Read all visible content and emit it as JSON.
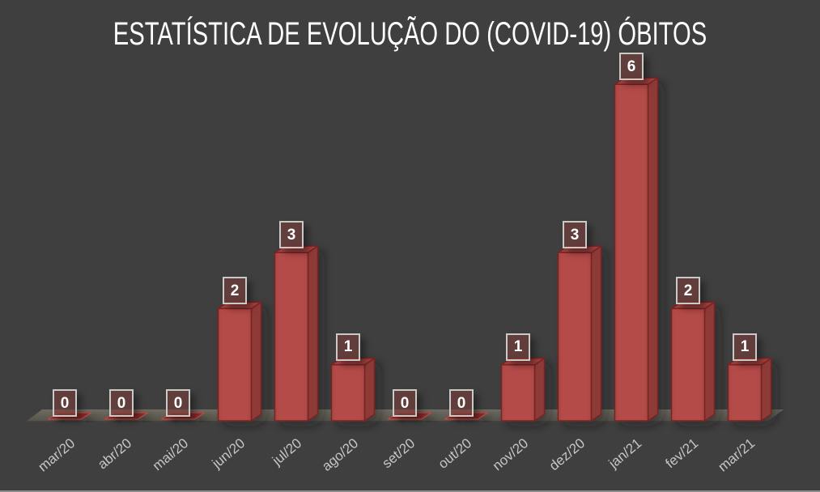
{
  "title": "ESTATÍSTICA DE EVOLUÇÃO DO (COVID-19) ÓBITOS",
  "chart_data": {
    "type": "bar",
    "style": "3d-column",
    "title": "ESTATÍSTICA DE EVOLUÇÃO DO (COVID-19) ÓBITOS",
    "categories": [
      "mar/20",
      "abr/20",
      "mai/20",
      "jun/20",
      "jul/20",
      "ago/20",
      "set/20",
      "out/20",
      "nov/20",
      "dez/20",
      "jan/21",
      "fev/21",
      "mar/21"
    ],
    "values": [
      0,
      0,
      0,
      2,
      3,
      1,
      0,
      0,
      1,
      3,
      6,
      2,
      1
    ],
    "data_labels_shown": true,
    "xlabel": "",
    "ylabel": "",
    "ylim": [
      0,
      6
    ],
    "grid": false,
    "legend": "none",
    "colors": {
      "background": "#3f3f3f",
      "bar_front": "#b54c49",
      "bar_side": "#8e3a38",
      "bar_top": "#a24240",
      "bar_outline": "#7a2422",
      "zero_marker_fill": "#882c2a",
      "zero_marker_outline": "#b04a47",
      "floor_top": "#6f6c62",
      "floor_bottom": "#55534a",
      "floor_edge": "#454440",
      "label_box_border": "#c9c9c6",
      "label_box_fill": "rgba(118,62,56,0.62)",
      "label_text": "#ffffff",
      "axis_label": "#c6c6c6",
      "title_color": "#ffffff"
    }
  }
}
